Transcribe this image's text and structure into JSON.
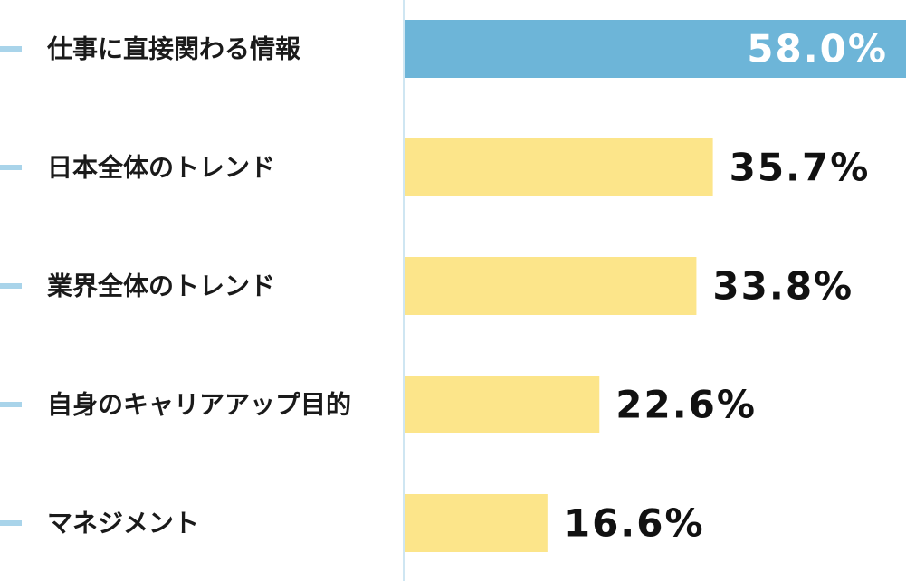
{
  "chart_data": {
    "type": "bar",
    "orientation": "horizontal",
    "categories": [
      "仕事に直接関わる情報",
      "日本全体のトレンド",
      "業界全体のトレンド",
      "自身のキャリアアップ目的",
      "マネジメント"
    ],
    "values": [
      58.0,
      35.7,
      33.8,
      22.6,
      16.6
    ],
    "value_labels": [
      "58.0%",
      "35.7%",
      "33.8%",
      "22.6%",
      "16.6%"
    ],
    "unit": "%",
    "xlim": [
      0,
      58.0
    ],
    "grid": false,
    "legend": "none",
    "highlight_index": 0,
    "colors": {
      "highlight_bar": "#6db5d8",
      "bar": "#fce58a",
      "highlight_label": "#ffffff",
      "label": "#111111",
      "tick": "#a9d4ea",
      "axis": "#cfe6f2"
    }
  }
}
